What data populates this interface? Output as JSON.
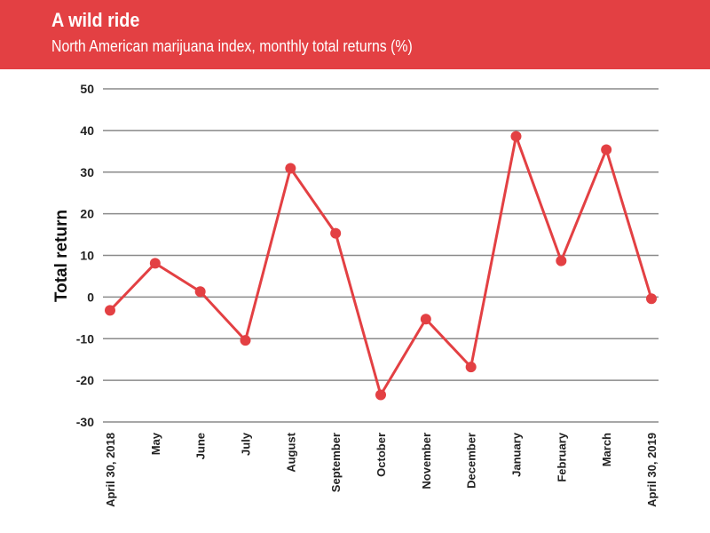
{
  "chart_data": {
    "type": "line",
    "title": "A wild ride",
    "subtitle": "North American marijuana index, monthly total returns (%)",
    "xlabel": "",
    "ylabel": "Total return",
    "ylim": [
      -30,
      50
    ],
    "yticks": [
      50,
      40,
      30,
      20,
      10,
      0,
      -10,
      -20,
      -30
    ],
    "ytick_labels": [
      "50",
      "40",
      "30",
      "20",
      "10",
      "0",
      "-10",
      "-20",
      "-30"
    ],
    "grid": true,
    "categories": [
      "April 30, 2018",
      "May",
      "June",
      "July",
      "August",
      "September",
      "October",
      "November",
      "December",
      "January",
      "February",
      "March",
      "April 30, 2019"
    ],
    "series": [
      {
        "name": "Monthly total return",
        "color": "#e34043",
        "values": [
          -3.2,
          8.1,
          1.3,
          -10.4,
          30.9,
          15.3,
          -23.5,
          -5.3,
          -16.8,
          38.6,
          8.7,
          35.4,
          -0.4
        ]
      }
    ]
  }
}
